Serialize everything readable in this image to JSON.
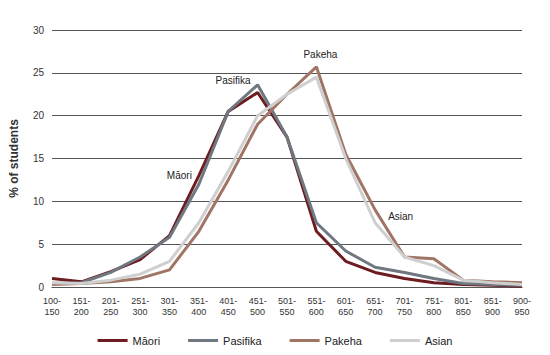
{
  "chart_data": {
    "type": "line",
    "categories": [
      "100-150",
      "151-200",
      "201-250",
      "251-300",
      "301-350",
      "351-400",
      "401-450",
      "451-500",
      "501-550",
      "551-600",
      "601-650",
      "651-700",
      "701-750",
      "751-800",
      "801-850",
      "851-900",
      "900-950"
    ],
    "y_label": "% of students",
    "ylim": [
      0,
      30
    ],
    "yticks": [
      0,
      5,
      10,
      15,
      20,
      25,
      30
    ],
    "grid": true,
    "legend": "bottom",
    "series": [
      {
        "name": "Māori",
        "color": "#6d1c22",
        "values": [
          1.0,
          0.6,
          1.8,
          3.2,
          6.0,
          13.0,
          20.5,
          22.7,
          17.5,
          6.5,
          3.0,
          1.7,
          1.0,
          0.5,
          0.3,
          0.2,
          0.1
        ]
      },
      {
        "name": "Pasifika",
        "color": "#6f7780",
        "values": [
          0.4,
          0.5,
          1.7,
          3.5,
          5.8,
          12.0,
          20.5,
          23.6,
          17.5,
          7.5,
          4.2,
          2.3,
          1.7,
          1.0,
          0.4,
          0.3,
          0.2
        ]
      },
      {
        "name": "Pakeha",
        "color": "#a07566",
        "values": [
          0.3,
          0.4,
          0.6,
          1.0,
          2.0,
          6.5,
          12.5,
          19.0,
          22.5,
          25.7,
          15.5,
          9.0,
          3.5,
          3.3,
          0.8,
          0.6,
          0.5
        ]
      },
      {
        "name": "Asian",
        "color": "#cfcfcf",
        "values": [
          0.5,
          0.4,
          0.8,
          1.5,
          3.0,
          7.5,
          13.5,
          20.0,
          22.5,
          24.5,
          15.0,
          7.5,
          3.5,
          2.5,
          0.8,
          0.5,
          0.3
        ]
      }
    ],
    "annotations": [
      {
        "text": "Pasifika",
        "series": "Pasifika",
        "x": "451-500",
        "y": 23.6
      },
      {
        "text": "Māori",
        "series": "Māori",
        "x": "351-400",
        "y": 13.0
      },
      {
        "text": "Pakeha",
        "series": "Pakeha",
        "x": "551-600",
        "y": 25.7
      },
      {
        "text": "Asian",
        "series": "Asian",
        "x": "651-700",
        "y": 7.5
      }
    ]
  }
}
